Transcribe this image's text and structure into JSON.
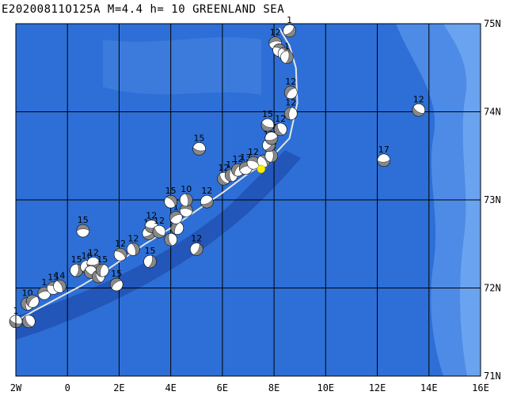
{
  "title": "E20200811O125A M=4.4 h= 10 GREENLAND SEA",
  "map": {
    "lon_range": [
      -2,
      16
    ],
    "lat_range": [
      71,
      75
    ],
    "lon_ticks": [
      {
        "v": -2,
        "label": "2W"
      },
      {
        "v": 0,
        "label": "0"
      },
      {
        "v": 2,
        "label": "2E"
      },
      {
        "v": 4,
        "label": "4E"
      },
      {
        "v": 6,
        "label": "6E"
      },
      {
        "v": 8,
        "label": "8E"
      },
      {
        "v": 10,
        "label": "10E"
      },
      {
        "v": 12,
        "label": "12E"
      },
      {
        "v": 14,
        "label": "14E"
      },
      {
        "v": 16,
        "label": "16E"
      }
    ],
    "lat_ticks": [
      {
        "v": 75,
        "label": "75N"
      },
      {
        "v": 74,
        "label": "74N"
      },
      {
        "v": 73,
        "label": "73N"
      },
      {
        "v": 72,
        "label": "72N"
      },
      {
        "v": 71,
        "label": "71N"
      }
    ],
    "colors": {
      "ocean": "#2d6fd6",
      "shallow": "#5a98ea",
      "ridge": "#2256b8",
      "grid": "#000000",
      "plate_boundary": "#e6e6e6",
      "mechanism": "#888888",
      "highlight": "#ffee00"
    },
    "plate_boundary": [
      [
        -2.0,
        71.62
      ],
      [
        -1.3,
        71.74
      ],
      [
        -0.4,
        71.88
      ],
      [
        0.5,
        72.02
      ],
      [
        1.3,
        72.16
      ],
      [
        2.1,
        72.32
      ],
      [
        3.0,
        72.5
      ],
      [
        4.0,
        72.68
      ],
      [
        5.0,
        72.88
      ],
      [
        6.0,
        73.08
      ],
      [
        7.0,
        73.3
      ],
      [
        7.8,
        73.45
      ],
      [
        8.6,
        73.7
      ],
      [
        8.9,
        74.1
      ],
      [
        8.85,
        74.5
      ],
      [
        8.6,
        74.75
      ],
      [
        8.2,
        74.95
      ]
    ],
    "highlight_event": {
      "lon": 7.5,
      "lat": 73.35
    },
    "events": [
      {
        "lon": -2.0,
        "lat": 71.62,
        "label": "1"
      },
      {
        "lon": -1.5,
        "lat": 71.62,
        "label": ""
      },
      {
        "lon": -1.55,
        "lat": 71.82,
        "label": "10"
      },
      {
        "lon": -1.35,
        "lat": 71.85,
        "label": ""
      },
      {
        "lon": -0.9,
        "lat": 71.94,
        "label": "1"
      },
      {
        "lon": -0.55,
        "lat": 72.0,
        "label": "15"
      },
      {
        "lon": -0.3,
        "lat": 72.02,
        "label": "14"
      },
      {
        "lon": 0.35,
        "lat": 72.2,
        "label": "15"
      },
      {
        "lon": 0.75,
        "lat": 72.24,
        "label": "16"
      },
      {
        "lon": 1.0,
        "lat": 72.28,
        "label": "12"
      },
      {
        "lon": 0.9,
        "lat": 72.18,
        "label": ""
      },
      {
        "lon": 1.2,
        "lat": 72.13,
        "label": ""
      },
      {
        "lon": 1.35,
        "lat": 72.2,
        "label": "15"
      },
      {
        "lon": 1.9,
        "lat": 72.04,
        "label": "15"
      },
      {
        "lon": 0.6,
        "lat": 72.65,
        "label": "15"
      },
      {
        "lon": 2.05,
        "lat": 72.38,
        "label": "12"
      },
      {
        "lon": 2.55,
        "lat": 72.44,
        "label": "12"
      },
      {
        "lon": 3.2,
        "lat": 72.3,
        "label": "15"
      },
      {
        "lon": 3.15,
        "lat": 72.62,
        "label": "12"
      },
      {
        "lon": 3.25,
        "lat": 72.7,
        "label": "12"
      },
      {
        "lon": 3.55,
        "lat": 72.64,
        "label": "12"
      },
      {
        "lon": 4.0,
        "lat": 72.55,
        "label": ""
      },
      {
        "lon": 4.25,
        "lat": 72.68,
        "label": ""
      },
      {
        "lon": 4.2,
        "lat": 72.8,
        "label": "1"
      },
      {
        "lon": 4.6,
        "lat": 72.88,
        "label": "14"
      },
      {
        "lon": 4.0,
        "lat": 72.98,
        "label": "15"
      },
      {
        "lon": 4.6,
        "lat": 73.0,
        "label": "10"
      },
      {
        "lon": 5.0,
        "lat": 72.44,
        "label": "12"
      },
      {
        "lon": 5.4,
        "lat": 72.98,
        "label": "12"
      },
      {
        "lon": 5.1,
        "lat": 73.58,
        "label": "15"
      },
      {
        "lon": 6.05,
        "lat": 73.24,
        "label": "12"
      },
      {
        "lon": 6.35,
        "lat": 73.28,
        "label": "12"
      },
      {
        "lon": 6.6,
        "lat": 73.34,
        "label": "12"
      },
      {
        "lon": 6.9,
        "lat": 73.36,
        "label": "13"
      },
      {
        "lon": 7.2,
        "lat": 73.42,
        "label": "12"
      },
      {
        "lon": 7.6,
        "lat": 73.44,
        "label": ""
      },
      {
        "lon": 7.9,
        "lat": 73.5,
        "label": "12"
      },
      {
        "lon": 7.8,
        "lat": 73.62,
        "label": "12"
      },
      {
        "lon": 7.9,
        "lat": 73.7,
        "label": "14"
      },
      {
        "lon": 7.75,
        "lat": 73.85,
        "label": "15"
      },
      {
        "lon": 8.25,
        "lat": 73.8,
        "label": "12"
      },
      {
        "lon": 8.65,
        "lat": 73.98,
        "label": "12"
      },
      {
        "lon": 8.65,
        "lat": 74.22,
        "label": "12"
      },
      {
        "lon": 8.05,
        "lat": 74.78,
        "label": "12"
      },
      {
        "lon": 8.2,
        "lat": 74.7,
        "label": ""
      },
      {
        "lon": 8.4,
        "lat": 74.66,
        "label": ""
      },
      {
        "lon": 8.5,
        "lat": 74.62,
        "label": "1"
      },
      {
        "lon": 8.6,
        "lat": 74.92,
        "label": "1"
      },
      {
        "lon": 12.25,
        "lat": 73.45,
        "label": "17"
      },
      {
        "lon": 13.6,
        "lat": 74.02,
        "label": "12"
      }
    ]
  }
}
